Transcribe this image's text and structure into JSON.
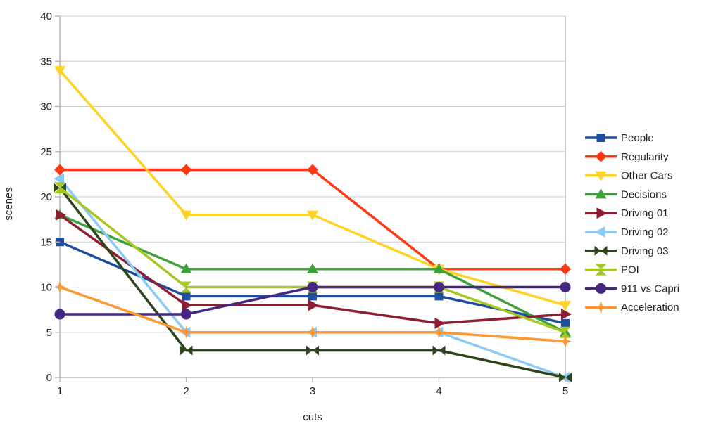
{
  "figure": {
    "background": "#ffffff",
    "text_color": "#1f1f1f",
    "grid_color": "#cccccc",
    "axis_color": "#b3b3b3"
  },
  "chart_data": {
    "type": "line",
    "title": "",
    "xlabel": "cuts",
    "ylabel": "scenes",
    "x": [
      1,
      2,
      3,
      4,
      5
    ],
    "xticks": [
      "1",
      "2",
      "3",
      "4",
      "5"
    ],
    "yticks": [
      "0",
      "5",
      "10",
      "15",
      "20",
      "25",
      "30",
      "35",
      "40"
    ],
    "ylim": [
      0,
      40
    ],
    "ytick_step": 5,
    "grid": "horizontal",
    "legend_position": "right",
    "series": [
      {
        "name": "People",
        "color": "#1F4E9E",
        "marker": "square",
        "values": [
          15,
          9,
          9,
          9,
          6
        ]
      },
      {
        "name": "Regularity",
        "color": "#FF3814",
        "marker": "diamond",
        "values": [
          23,
          23,
          23,
          12,
          12
        ]
      },
      {
        "name": "Other Cars",
        "color": "#FFD226",
        "marker": "triangle-down",
        "values": [
          34,
          18,
          18,
          12,
          8
        ]
      },
      {
        "name": "Decisions",
        "color": "#3DA139",
        "marker": "triangle-up",
        "values": [
          18,
          12,
          12,
          12,
          5
        ]
      },
      {
        "name": "Driving 01",
        "color": "#8E1D31",
        "marker": "triangle-right",
        "values": [
          18,
          8,
          8,
          6,
          7
        ]
      },
      {
        "name": "Driving 02",
        "color": "#8CCBF8",
        "marker": "triangle-left",
        "values": [
          22,
          5,
          5,
          5,
          0
        ]
      },
      {
        "name": "Driving 03",
        "color": "#2D451B",
        "marker": "bowtie",
        "values": [
          21,
          3,
          3,
          3,
          0
        ]
      },
      {
        "name": "POI",
        "color": "#A5C823",
        "marker": "hourglass",
        "values": [
          21,
          10,
          10,
          10,
          5
        ]
      },
      {
        "name": "911 vs Capri",
        "color": "#472683",
        "marker": "circle",
        "values": [
          7,
          7,
          10,
          10,
          10
        ]
      },
      {
        "name": "Acceleration",
        "color": "#FF9830",
        "marker": "star",
        "values": [
          10,
          5,
          5,
          5,
          4
        ]
      }
    ]
  }
}
